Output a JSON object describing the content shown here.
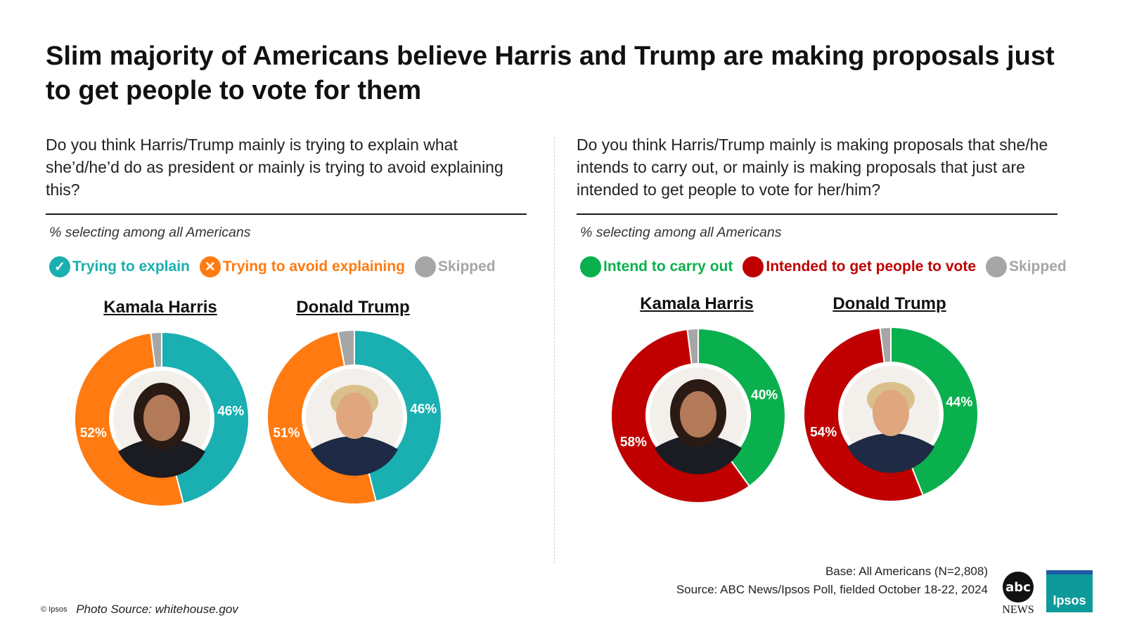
{
  "title": "Slim majority of Americans believe Harris and Trump are making proposals just to get people to vote for them",
  "left_panel": {
    "question": "Do you think Harris/Trump mainly is trying to explain what she’d/he’d do as president or mainly is trying to avoid explaining this?",
    "subtitle": "% selecting among all Americans",
    "legend": [
      {
        "label": "Trying to explain",
        "color": "#1aafb0",
        "icon": "check-icon",
        "glyph": "✓"
      },
      {
        "label": "Trying to avoid explaining",
        "color": "#ff7a10",
        "icon": "x-icon",
        "glyph": "✕"
      },
      {
        "label": "Skipped",
        "color": "#a6a6a6",
        "icon": "dot-icon",
        "glyph": ""
      }
    ]
  },
  "right_panel": {
    "question": "Do you think Harris/Trump mainly is making proposals that she/he intends to carry out, or mainly is making proposals that just are intended to get people to vote for her/him?",
    "subtitle": "% selecting among all Americans",
    "legend": [
      {
        "label": "Intend to carry out",
        "color": "#0ab04d",
        "icon": "dot-icon",
        "glyph": ""
      },
      {
        "label": "Intended to get people to vote",
        "color": "#c00000",
        "icon": "dot-icon",
        "glyph": ""
      },
      {
        "label": "Skipped",
        "color": "#a6a6a6",
        "icon": "dot-icon",
        "glyph": ""
      }
    ]
  },
  "chart_data": [
    {
      "type": "pie",
      "panel": "left",
      "title": "Kamala Harris",
      "categories": [
        "Trying to explain",
        "Trying to avoid explaining",
        "Skipped"
      ],
      "values": [
        46,
        52,
        2
      ],
      "labels": [
        "46%",
        "52%",
        ""
      ],
      "colors": [
        "#1aafb0",
        "#ff7a10",
        "#a6a6a6"
      ]
    },
    {
      "type": "pie",
      "panel": "left",
      "title": "Donald Trump",
      "categories": [
        "Trying to explain",
        "Trying to avoid explaining",
        "Skipped"
      ],
      "values": [
        46,
        51,
        3
      ],
      "labels": [
        "46%",
        "51%",
        ""
      ],
      "colors": [
        "#1aafb0",
        "#ff7a10",
        "#a6a6a6"
      ]
    },
    {
      "type": "pie",
      "panel": "right",
      "title": "Kamala Harris",
      "categories": [
        "Intend to carry out",
        "Intended to get people to vote",
        "Skipped"
      ],
      "values": [
        40,
        58,
        2
      ],
      "labels": [
        "40%",
        "58%",
        ""
      ],
      "colors": [
        "#0ab04d",
        "#c00000",
        "#a6a6a6"
      ]
    },
    {
      "type": "pie",
      "panel": "right",
      "title": "Donald Trump",
      "categories": [
        "Intend to carry out",
        "Intended to get people to vote",
        "Skipped"
      ],
      "values": [
        44,
        54,
        2
      ],
      "labels": [
        "44%",
        "54%",
        ""
      ],
      "colors": [
        "#0ab04d",
        "#c00000",
        "#a6a6a6"
      ]
    }
  ],
  "footer": {
    "copyright": "© Ipsos",
    "photo_source": "Photo Source: whitehouse.gov",
    "base": "Base: All Americans (N=2,808)",
    "source": "Source: ABC News/Ipsos Poll, fielded October 18-22, 2024",
    "abc_logo": "abc",
    "abc_news": "NEWS",
    "ipsos_logo": "Ipsos"
  }
}
